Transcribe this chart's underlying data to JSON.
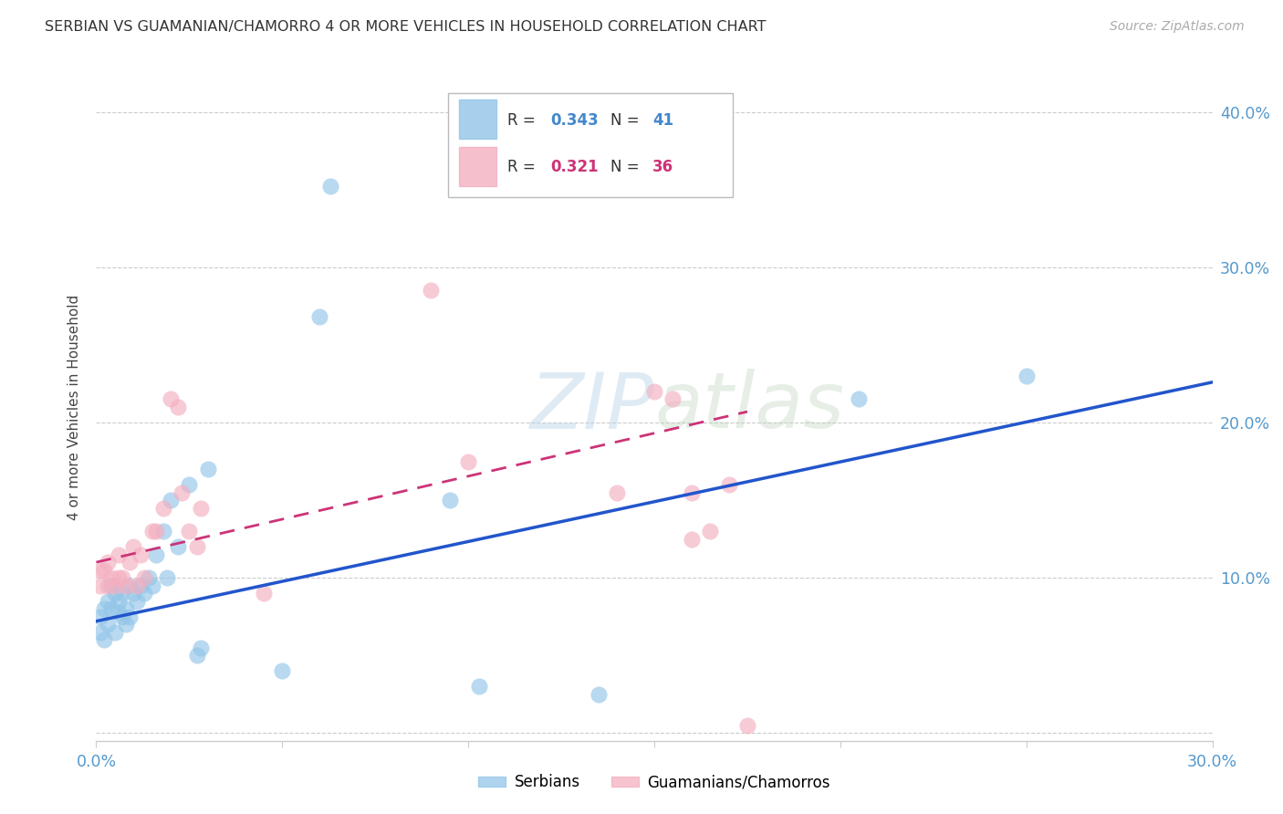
{
  "title": "SERBIAN VS GUAMANIAN/CHAMORRO 4 OR MORE VEHICLES IN HOUSEHOLD CORRELATION CHART",
  "source": "Source: ZipAtlas.com",
  "ylabel": "4 or more Vehicles in Household",
  "xlim": [
    0.0,
    0.3
  ],
  "ylim": [
    -0.005,
    0.425
  ],
  "x_ticks": [
    0.0,
    0.05,
    0.1,
    0.15,
    0.2,
    0.25,
    0.3
  ],
  "y_ticks": [
    0.0,
    0.1,
    0.2,
    0.3,
    0.4
  ],
  "legend_label1": "Serbians",
  "legend_label2": "Guamanians/Chamorros",
  "R1": 0.343,
  "N1": 41,
  "R2": 0.321,
  "N2": 36,
  "color1": "#92c5e8",
  "color2": "#f4afc0",
  "line_color1": "#2255cc",
  "line_color2": "#cc3377",
  "line1_x0": 0.0,
  "line1_y0": 0.072,
  "line1_x1": 0.3,
  "line1_y1": 0.226,
  "line2_x0": 0.0,
  "line2_y0": 0.11,
  "line2_x1": 0.175,
  "line2_y1": 0.207,
  "serbian_x": [
    0.001,
    0.001,
    0.002,
    0.002,
    0.003,
    0.003,
    0.004,
    0.004,
    0.005,
    0.005,
    0.006,
    0.006,
    0.007,
    0.007,
    0.008,
    0.008,
    0.009,
    0.009,
    0.01,
    0.011,
    0.012,
    0.013,
    0.014,
    0.015,
    0.016,
    0.018,
    0.019,
    0.02,
    0.022,
    0.025,
    0.027,
    0.028,
    0.06,
    0.063,
    0.095,
    0.103,
    0.135,
    0.205,
    0.25,
    0.03,
    0.05
  ],
  "serbian_y": [
    0.075,
    0.065,
    0.08,
    0.06,
    0.085,
    0.07,
    0.08,
    0.095,
    0.065,
    0.09,
    0.078,
    0.085,
    0.075,
    0.09,
    0.08,
    0.07,
    0.095,
    0.075,
    0.09,
    0.085,
    0.095,
    0.09,
    0.1,
    0.095,
    0.115,
    0.13,
    0.1,
    0.15,
    0.12,
    0.16,
    0.05,
    0.055,
    0.268,
    0.352,
    0.15,
    0.03,
    0.025,
    0.215,
    0.23,
    0.17,
    0.04
  ],
  "guamanian_x": [
    0.001,
    0.001,
    0.002,
    0.003,
    0.003,
    0.004,
    0.005,
    0.006,
    0.006,
    0.007,
    0.008,
    0.009,
    0.01,
    0.011,
    0.012,
    0.013,
    0.015,
    0.016,
    0.018,
    0.02,
    0.022,
    0.023,
    0.025,
    0.027,
    0.028,
    0.045,
    0.09,
    0.1,
    0.14,
    0.15,
    0.155,
    0.16,
    0.165,
    0.17,
    0.175,
    0.16
  ],
  "guamanian_y": [
    0.105,
    0.095,
    0.105,
    0.095,
    0.11,
    0.1,
    0.095,
    0.1,
    0.115,
    0.1,
    0.095,
    0.11,
    0.12,
    0.095,
    0.115,
    0.1,
    0.13,
    0.13,
    0.145,
    0.215,
    0.21,
    0.155,
    0.13,
    0.12,
    0.145,
    0.09,
    0.285,
    0.175,
    0.155,
    0.22,
    0.215,
    0.155,
    0.13,
    0.16,
    0.005,
    0.125
  ]
}
